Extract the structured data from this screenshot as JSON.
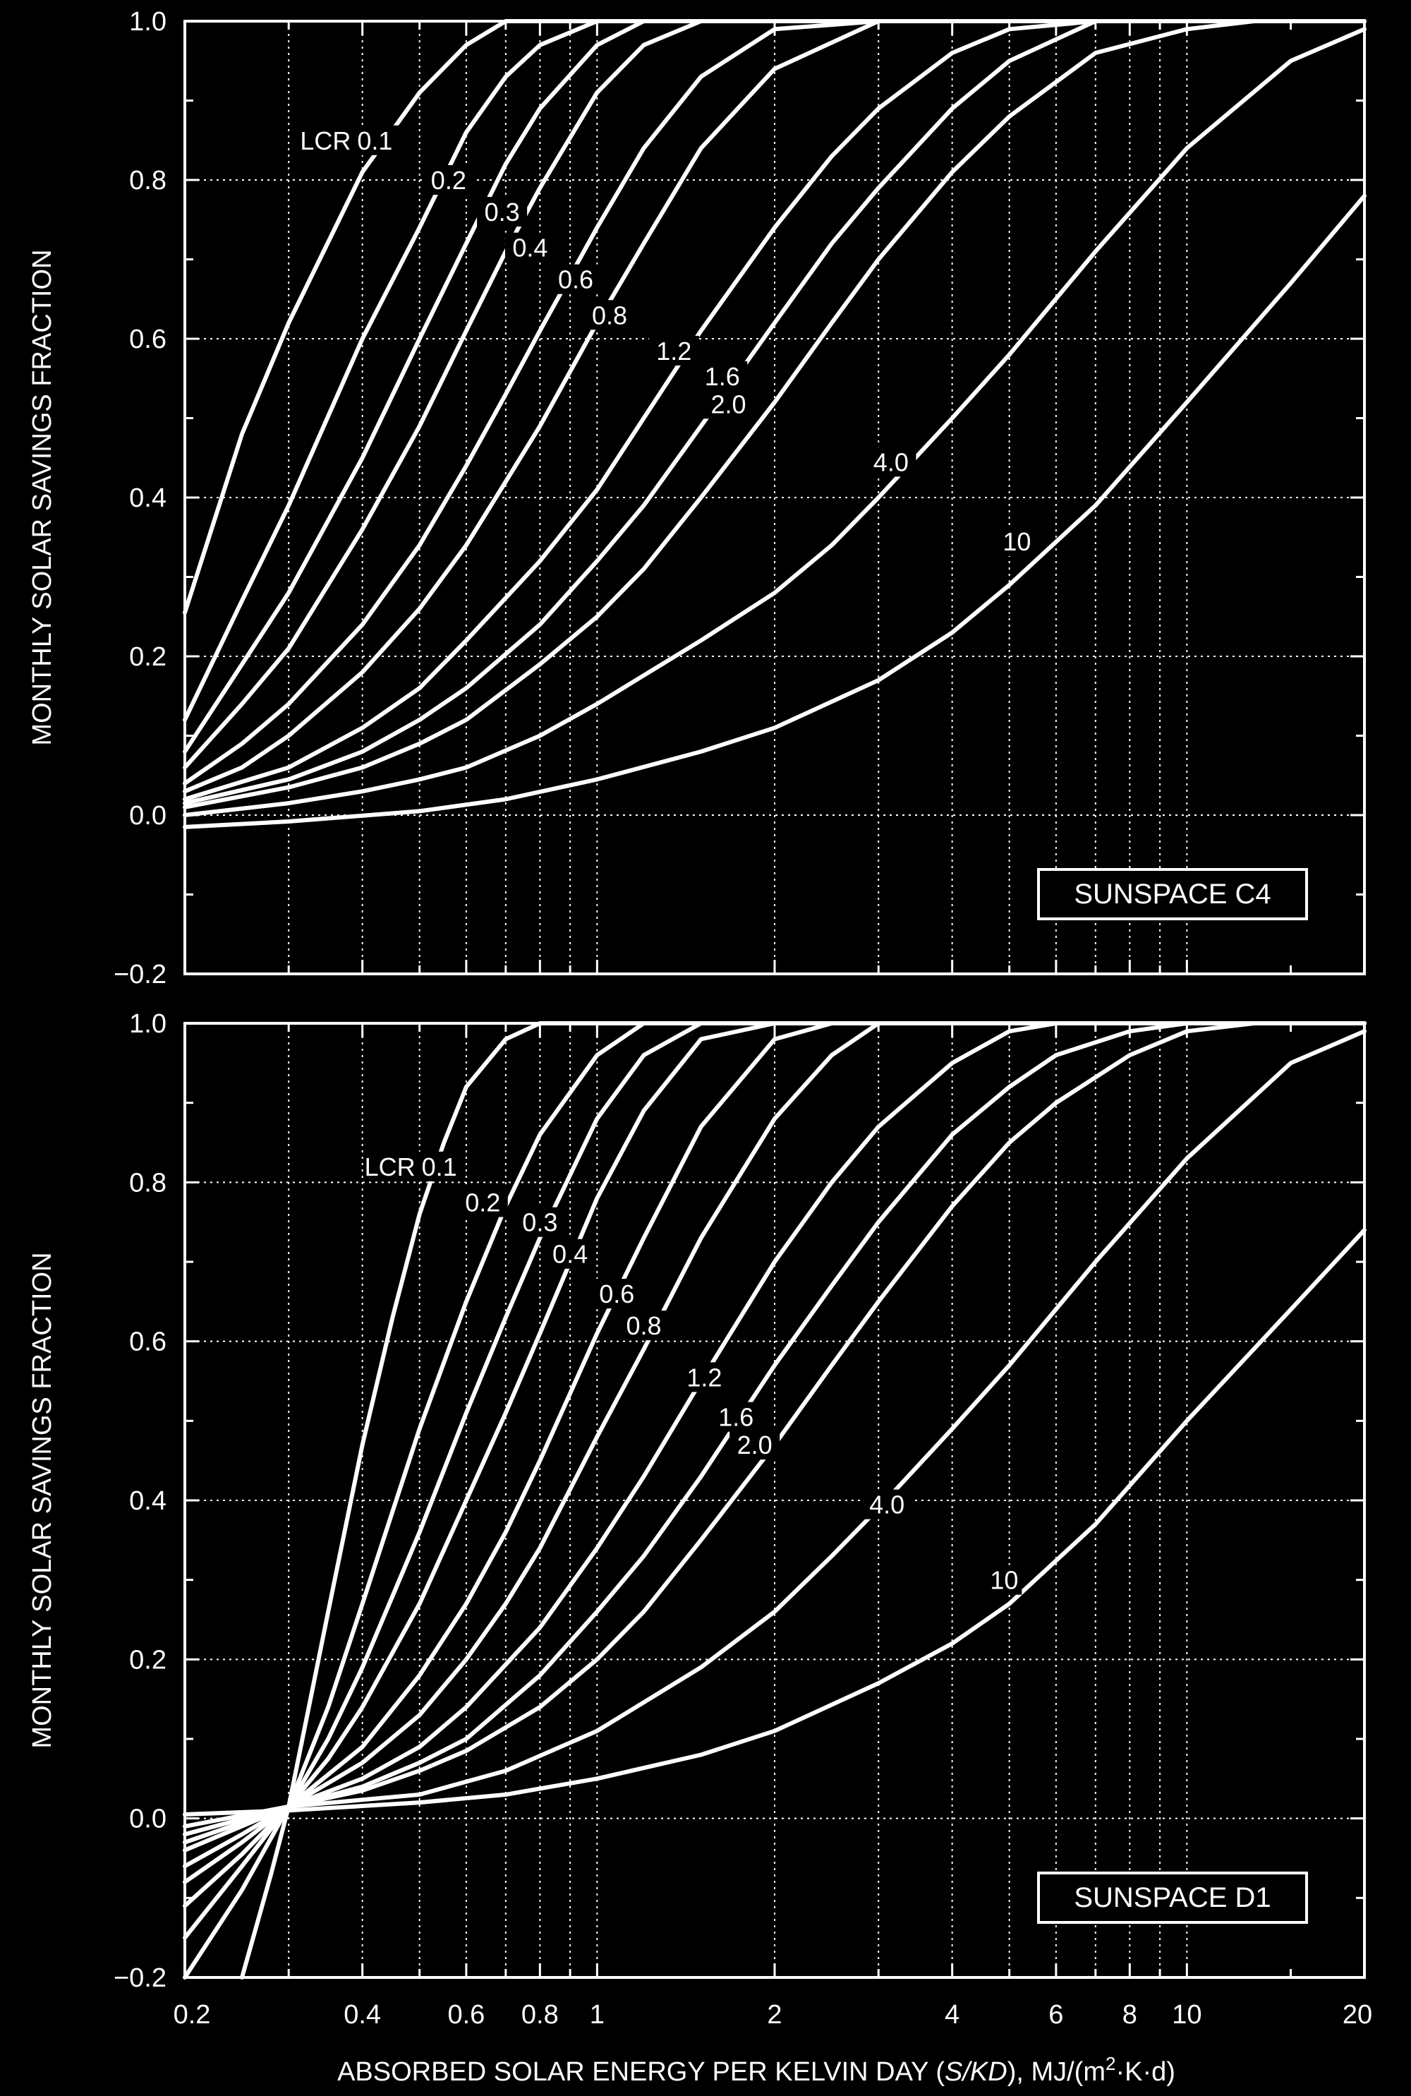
{
  "chart_data": [
    {
      "type": "line",
      "panel": "SUNSPACE C4",
      "xscale": "log",
      "xlim": [
        0.2,
        20
      ],
      "ylim": [
        -0.2,
        1.0
      ],
      "yticks": [
        "1.0",
        "0.8",
        "0.6",
        "0.4",
        "0.2",
        "0.0",
        "−0.2"
      ],
      "ylabel": "MONTHLY SOLAR SAVINGS FRACTION",
      "grid": true,
      "lcr_prefix": "LCR",
      "badge": "SUNSPACE C4",
      "series": [
        {
          "name": "0.1",
          "x": [
            0.2,
            0.25,
            0.3,
            0.4,
            0.5,
            0.6,
            0.7,
            0.8,
            1.0,
            1.2,
            1.5,
            2,
            3,
            5,
            10,
            20
          ],
          "y": [
            0.255,
            0.48,
            0.62,
            0.81,
            0.91,
            0.97,
            1.0,
            1.0,
            1.0,
            1.0,
            1.0,
            1.0,
            1.0,
            1.0,
            1.0,
            1.0
          ]
        },
        {
          "name": "0.2",
          "x": [
            0.2,
            0.25,
            0.3,
            0.4,
            0.5,
            0.6,
            0.7,
            0.8,
            1.0,
            1.2,
            1.5,
            2,
            3,
            5,
            10,
            20
          ],
          "y": [
            0.12,
            0.27,
            0.39,
            0.6,
            0.74,
            0.86,
            0.93,
            0.97,
            1.0,
            1.0,
            1.0,
            1.0,
            1.0,
            1.0,
            1.0,
            1.0
          ]
        },
        {
          "name": "0.3",
          "x": [
            0.2,
            0.25,
            0.3,
            0.4,
            0.5,
            0.6,
            0.7,
            0.8,
            1.0,
            1.2,
            1.5,
            2,
            3,
            5,
            10,
            20
          ],
          "y": [
            0.08,
            0.19,
            0.28,
            0.45,
            0.6,
            0.72,
            0.82,
            0.89,
            0.97,
            1.0,
            1.0,
            1.0,
            1.0,
            1.0,
            1.0,
            1.0
          ]
        },
        {
          "name": "0.4",
          "x": [
            0.2,
            0.25,
            0.3,
            0.4,
            0.5,
            0.6,
            0.7,
            0.8,
            1.0,
            1.2,
            1.5,
            2,
            3,
            5,
            10,
            20
          ],
          "y": [
            0.06,
            0.14,
            0.21,
            0.36,
            0.49,
            0.61,
            0.71,
            0.79,
            0.91,
            0.97,
            1.0,
            1.0,
            1.0,
            1.0,
            1.0,
            1.0
          ]
        },
        {
          "name": "0.6",
          "x": [
            0.2,
            0.25,
            0.3,
            0.4,
            0.5,
            0.6,
            0.7,
            0.8,
            1.0,
            1.2,
            1.5,
            2,
            3,
            5,
            10,
            20
          ],
          "y": [
            0.04,
            0.09,
            0.14,
            0.24,
            0.34,
            0.44,
            0.53,
            0.61,
            0.74,
            0.84,
            0.93,
            0.99,
            1.0,
            1.0,
            1.0,
            1.0
          ]
        },
        {
          "name": "0.8",
          "x": [
            0.2,
            0.25,
            0.3,
            0.4,
            0.5,
            0.6,
            0.7,
            0.8,
            1.0,
            1.2,
            1.5,
            2,
            3,
            5,
            10,
            20
          ],
          "y": [
            0.03,
            0.06,
            0.1,
            0.18,
            0.26,
            0.34,
            0.42,
            0.49,
            0.62,
            0.72,
            0.84,
            0.94,
            1.0,
            1.0,
            1.0,
            1.0
          ]
        },
        {
          "name": "1.2",
          "x": [
            0.2,
            0.3,
            0.4,
            0.5,
            0.6,
            0.8,
            1.0,
            1.2,
            1.5,
            2,
            2.5,
            3,
            4,
            5,
            7,
            10,
            20
          ],
          "y": [
            0.02,
            0.06,
            0.11,
            0.16,
            0.22,
            0.32,
            0.41,
            0.5,
            0.61,
            0.74,
            0.83,
            0.89,
            0.96,
            0.99,
            1.0,
            1.0,
            1.0
          ]
        },
        {
          "name": "1.6",
          "x": [
            0.2,
            0.3,
            0.4,
            0.5,
            0.6,
            0.8,
            1.0,
            1.2,
            1.5,
            2,
            2.5,
            3,
            4,
            5,
            7,
            10,
            20
          ],
          "y": [
            0.015,
            0.045,
            0.08,
            0.12,
            0.16,
            0.24,
            0.32,
            0.39,
            0.49,
            0.62,
            0.72,
            0.79,
            0.89,
            0.95,
            1.0,
            1.0,
            1.0
          ]
        },
        {
          "name": "2.0",
          "x": [
            0.2,
            0.3,
            0.4,
            0.5,
            0.6,
            0.8,
            1.0,
            1.2,
            1.5,
            2,
            2.5,
            3,
            4,
            5,
            7,
            10,
            13,
            20
          ],
          "y": [
            0.01,
            0.035,
            0.06,
            0.09,
            0.12,
            0.19,
            0.25,
            0.31,
            0.4,
            0.52,
            0.62,
            0.7,
            0.81,
            0.88,
            0.96,
            0.99,
            1.0,
            1.0
          ]
        },
        {
          "name": "4.0",
          "x": [
            0.2,
            0.3,
            0.4,
            0.5,
            0.6,
            0.8,
            1.0,
            1.5,
            2,
            2.5,
            3,
            4,
            5,
            7,
            10,
            15,
            20
          ],
          "y": [
            0.0,
            0.015,
            0.03,
            0.045,
            0.06,
            0.1,
            0.14,
            0.22,
            0.28,
            0.34,
            0.4,
            0.5,
            0.58,
            0.71,
            0.84,
            0.95,
            0.99
          ]
        },
        {
          "name": "10",
          "x": [
            0.2,
            0.3,
            0.5,
            0.7,
            1.0,
            1.5,
            2,
            3,
            4,
            5,
            7,
            10,
            15,
            20
          ],
          "y": [
            -0.015,
            -0.008,
            0.005,
            0.02,
            0.045,
            0.08,
            0.11,
            0.17,
            0.23,
            0.29,
            0.39,
            0.52,
            0.67,
            0.78
          ]
        }
      ],
      "labels": [
        {
          "text": "0.1",
          "x": 0.42,
          "y": 0.85
        },
        {
          "text": "0.2",
          "x": 0.56,
          "y": 0.8
        },
        {
          "text": "0.3",
          "x": 0.69,
          "y": 0.76
        },
        {
          "text": "0.4",
          "x": 0.77,
          "y": 0.715
        },
        {
          "text": "0.6",
          "x": 0.92,
          "y": 0.675
        },
        {
          "text": "0.8",
          "x": 1.05,
          "y": 0.63
        },
        {
          "text": "1.2",
          "x": 1.35,
          "y": 0.585
        },
        {
          "text": "1.6",
          "x": 1.63,
          "y": 0.553
        },
        {
          "text": "2.0",
          "x": 1.67,
          "y": 0.518
        },
        {
          "text": "4.0",
          "x": 3.15,
          "y": 0.445
        },
        {
          "text": "10",
          "x": 5.15,
          "y": 0.345
        }
      ]
    },
    {
      "type": "line",
      "panel": "SUNSPACE D1",
      "xscale": "log",
      "xlim": [
        0.2,
        20
      ],
      "ylim": [
        -0.2,
        1.0
      ],
      "xticks": [
        "0.2",
        "0.4",
        "0.6",
        "0.8",
        "1",
        "2",
        "4",
        "6",
        "8",
        "10",
        "20"
      ],
      "yticks": [
        "1.0",
        "0.8",
        "0.6",
        "0.4",
        "0.2",
        "0.0",
        "−0.2"
      ],
      "ylabel": "MONTHLY SOLAR SAVINGS FRACTION",
      "xlabel": "ABSORBED SOLAR ENERGY PER KELVIN DAY (",
      "xlabel_italic": "S/KD",
      "xlabel_unit": "), MJ/(m",
      "xlabel_sup": "2",
      "xlabel_end": "·K·d)",
      "grid": true,
      "lcr_prefix": "LCR",
      "badge": "SUNSPACE D1",
      "series": [
        {
          "name": "0.1",
          "x": [
            0.25,
            0.28,
            0.3,
            0.35,
            0.4,
            0.45,
            0.5,
            0.55,
            0.6,
            0.7,
            0.8,
            0.9,
            1.0,
            2,
            5,
            20
          ],
          "y": [
            -0.2,
            -0.07,
            0.015,
            0.26,
            0.47,
            0.63,
            0.76,
            0.85,
            0.92,
            0.98,
            1.0,
            1.0,
            1.0,
            1.0,
            1.0,
            1.0
          ]
        },
        {
          "name": "0.2",
          "x": [
            0.2,
            0.25,
            0.3,
            0.35,
            0.4,
            0.5,
            0.6,
            0.7,
            0.8,
            1.0,
            1.2,
            1.5,
            2,
            5,
            20
          ],
          "y": [
            -0.2,
            -0.09,
            0.015,
            0.14,
            0.27,
            0.49,
            0.65,
            0.77,
            0.86,
            0.96,
            1.0,
            1.0,
            1.0,
            1.0,
            1.0
          ]
        },
        {
          "name": "0.3",
          "x": [
            0.2,
            0.25,
            0.3,
            0.35,
            0.4,
            0.5,
            0.6,
            0.7,
            0.8,
            1.0,
            1.2,
            1.5,
            2,
            5,
            20
          ],
          "y": [
            -0.15,
            -0.06,
            0.015,
            0.1,
            0.19,
            0.36,
            0.51,
            0.63,
            0.73,
            0.88,
            0.96,
            1.0,
            1.0,
            1.0,
            1.0
          ]
        },
        {
          "name": "0.4",
          "x": [
            0.2,
            0.25,
            0.3,
            0.35,
            0.4,
            0.5,
            0.6,
            0.7,
            0.8,
            1.0,
            1.2,
            1.5,
            2,
            3,
            5,
            20
          ],
          "y": [
            -0.11,
            -0.045,
            0.015,
            0.075,
            0.14,
            0.27,
            0.4,
            0.51,
            0.61,
            0.78,
            0.89,
            0.98,
            1.0,
            1.0,
            1.0,
            1.0
          ]
        },
        {
          "name": "0.6",
          "x": [
            0.2,
            0.25,
            0.3,
            0.4,
            0.5,
            0.6,
            0.7,
            0.8,
            1.0,
            1.2,
            1.5,
            2,
            2.5,
            3,
            5,
            20
          ],
          "y": [
            -0.08,
            -0.03,
            0.015,
            0.09,
            0.18,
            0.27,
            0.36,
            0.45,
            0.61,
            0.73,
            0.87,
            0.98,
            1.0,
            1.0,
            1.0,
            1.0
          ]
        },
        {
          "name": "0.8",
          "x": [
            0.2,
            0.25,
            0.3,
            0.4,
            0.5,
            0.6,
            0.7,
            0.8,
            1.0,
            1.2,
            1.5,
            2,
            2.5,
            3,
            4,
            5,
            20
          ],
          "y": [
            -0.06,
            -0.02,
            0.015,
            0.07,
            0.13,
            0.2,
            0.27,
            0.34,
            0.48,
            0.59,
            0.73,
            0.88,
            0.96,
            1.0,
            1.0,
            1.0,
            1.0
          ]
        },
        {
          "name": "1.2",
          "x": [
            0.2,
            0.3,
            0.4,
            0.5,
            0.6,
            0.8,
            1.0,
            1.2,
            1.5,
            2,
            2.5,
            3,
            4,
            5,
            6,
            8,
            20
          ],
          "y": [
            -0.04,
            0.015,
            0.05,
            0.09,
            0.14,
            0.24,
            0.34,
            0.43,
            0.55,
            0.7,
            0.8,
            0.87,
            0.95,
            0.99,
            1.0,
            1.0,
            1.0
          ]
        },
        {
          "name": "1.6",
          "x": [
            0.2,
            0.3,
            0.4,
            0.5,
            0.6,
            0.8,
            1.0,
            1.2,
            1.5,
            2,
            2.5,
            3,
            4,
            5,
            6,
            8,
            10,
            20
          ],
          "y": [
            -0.03,
            0.015,
            0.04,
            0.07,
            0.1,
            0.18,
            0.26,
            0.33,
            0.43,
            0.57,
            0.67,
            0.75,
            0.86,
            0.92,
            0.96,
            0.99,
            1.0,
            1.0
          ]
        },
        {
          "name": "2.0",
          "x": [
            0.2,
            0.3,
            0.4,
            0.5,
            0.6,
            0.8,
            1.0,
            1.2,
            1.5,
            2,
            2.5,
            3,
            4,
            5,
            6,
            8,
            10,
            13,
            20
          ],
          "y": [
            -0.02,
            0.015,
            0.035,
            0.06,
            0.085,
            0.14,
            0.2,
            0.26,
            0.35,
            0.47,
            0.57,
            0.65,
            0.77,
            0.85,
            0.9,
            0.96,
            0.99,
            1.0,
            1.0
          ]
        },
        {
          "name": "4.0",
          "x": [
            0.2,
            0.3,
            0.5,
            0.7,
            1.0,
            1.5,
            2,
            2.5,
            3,
            4,
            5,
            7,
            10,
            15,
            20
          ],
          "y": [
            -0.01,
            0.015,
            0.03,
            0.06,
            0.11,
            0.19,
            0.26,
            0.33,
            0.39,
            0.49,
            0.57,
            0.7,
            0.83,
            0.95,
            0.99
          ]
        },
        {
          "name": "10",
          "x": [
            0.2,
            0.3,
            0.5,
            0.7,
            1.0,
            1.5,
            2,
            3,
            4,
            5,
            7,
            10,
            15,
            20
          ],
          "y": [
            0.005,
            0.01,
            0.02,
            0.03,
            0.05,
            0.08,
            0.11,
            0.17,
            0.22,
            0.27,
            0.37,
            0.5,
            0.64,
            0.74
          ]
        }
      ],
      "labels": [
        {
          "text": "0.1",
          "x": 0.54,
          "y": 0.82
        },
        {
          "text": "0.2",
          "x": 0.64,
          "y": 0.775
        },
        {
          "text": "0.3",
          "x": 0.8,
          "y": 0.75
        },
        {
          "text": "0.4",
          "x": 0.9,
          "y": 0.71
        },
        {
          "text": "0.6",
          "x": 1.08,
          "y": 0.66
        },
        {
          "text": "0.8",
          "x": 1.2,
          "y": 0.62
        },
        {
          "text": "1.2",
          "x": 1.52,
          "y": 0.555
        },
        {
          "text": "1.6",
          "x": 1.72,
          "y": 0.505
        },
        {
          "text": "2.0",
          "x": 1.85,
          "y": 0.47
        },
        {
          "text": "4.0",
          "x": 3.1,
          "y": 0.395
        },
        {
          "text": "10",
          "x": 4.9,
          "y": 0.3
        }
      ]
    }
  ]
}
